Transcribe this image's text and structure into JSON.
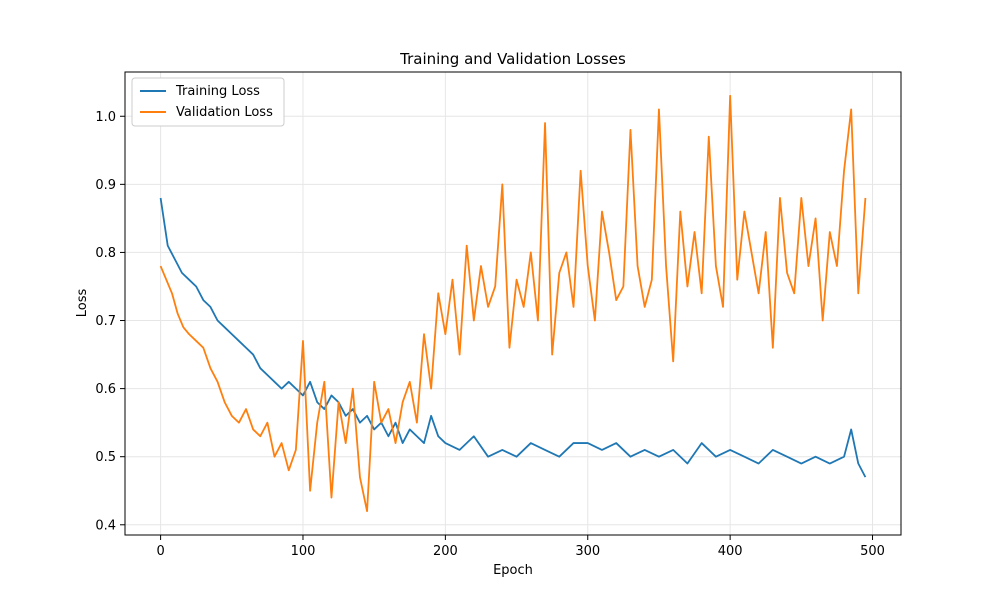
{
  "chart_data": {
    "type": "line",
    "title": "Training and Validation Losses",
    "xlabel": "Epoch",
    "ylabel": "Loss",
    "xlim": [
      -25,
      520
    ],
    "ylim": [
      0.385,
      1.065
    ],
    "xticks": [
      0,
      100,
      200,
      300,
      400,
      500
    ],
    "yticks": [
      0.4,
      0.5,
      0.6,
      0.7,
      0.8,
      0.9,
      1.0
    ],
    "xtick_labels": [
      "0",
      "100",
      "200",
      "300",
      "400",
      "500"
    ],
    "ytick_labels": [
      "0.4",
      "0.5",
      "0.6",
      "0.7",
      "0.8",
      "0.9",
      "1.0"
    ],
    "grid": true,
    "legend_position": "top-left",
    "series": [
      {
        "name": "Training Loss",
        "color": "#1f77b4",
        "x": [
          0,
          5,
          10,
          15,
          20,
          25,
          30,
          35,
          40,
          45,
          50,
          55,
          60,
          65,
          70,
          75,
          80,
          85,
          90,
          95,
          100,
          105,
          110,
          115,
          120,
          125,
          130,
          135,
          140,
          145,
          150,
          155,
          160,
          165,
          170,
          175,
          180,
          185,
          190,
          195,
          200,
          210,
          220,
          230,
          240,
          250,
          260,
          270,
          280,
          290,
          300,
          310,
          320,
          330,
          340,
          350,
          360,
          370,
          380,
          390,
          400,
          410,
          420,
          430,
          440,
          450,
          460,
          470,
          480,
          485,
          490,
          495
        ],
        "y": [
          0.88,
          0.81,
          0.79,
          0.77,
          0.76,
          0.75,
          0.73,
          0.72,
          0.7,
          0.69,
          0.68,
          0.67,
          0.66,
          0.65,
          0.63,
          0.62,
          0.61,
          0.6,
          0.61,
          0.6,
          0.59,
          0.61,
          0.58,
          0.57,
          0.59,
          0.58,
          0.56,
          0.57,
          0.55,
          0.56,
          0.54,
          0.55,
          0.53,
          0.55,
          0.52,
          0.54,
          0.53,
          0.52,
          0.56,
          0.53,
          0.52,
          0.51,
          0.53,
          0.5,
          0.51,
          0.5,
          0.52,
          0.51,
          0.5,
          0.52,
          0.52,
          0.51,
          0.52,
          0.5,
          0.51,
          0.5,
          0.51,
          0.49,
          0.52,
          0.5,
          0.51,
          0.5,
          0.49,
          0.51,
          0.5,
          0.49,
          0.5,
          0.49,
          0.5,
          0.54,
          0.49,
          0.47
        ]
      },
      {
        "name": "Validation Loss",
        "color": "#ff7f0e",
        "x": [
          0,
          4,
          8,
          12,
          16,
          20,
          25,
          30,
          35,
          40,
          45,
          50,
          55,
          60,
          65,
          70,
          75,
          80,
          85,
          90,
          95,
          100,
          105,
          110,
          115,
          120,
          125,
          130,
          135,
          140,
          145,
          150,
          155,
          160,
          165,
          170,
          175,
          180,
          185,
          190,
          195,
          200,
          205,
          210,
          215,
          220,
          225,
          230,
          235,
          240,
          245,
          250,
          255,
          260,
          265,
          270,
          275,
          280,
          285,
          290,
          295,
          300,
          305,
          310,
          315,
          320,
          325,
          330,
          335,
          340,
          345,
          350,
          355,
          360,
          365,
          370,
          375,
          380,
          385,
          390,
          395,
          400,
          405,
          410,
          415,
          420,
          425,
          430,
          435,
          440,
          445,
          450,
          455,
          460,
          465,
          470,
          475,
          480,
          485,
          490,
          495
        ],
        "y": [
          0.78,
          0.76,
          0.74,
          0.71,
          0.69,
          0.68,
          0.67,
          0.66,
          0.63,
          0.61,
          0.58,
          0.56,
          0.55,
          0.57,
          0.54,
          0.53,
          0.55,
          0.5,
          0.52,
          0.48,
          0.51,
          0.67,
          0.45,
          0.55,
          0.61,
          0.44,
          0.58,
          0.52,
          0.6,
          0.47,
          0.42,
          0.61,
          0.55,
          0.57,
          0.52,
          0.58,
          0.61,
          0.55,
          0.68,
          0.6,
          0.74,
          0.68,
          0.76,
          0.65,
          0.81,
          0.7,
          0.78,
          0.72,
          0.75,
          0.9,
          0.66,
          0.76,
          0.72,
          0.8,
          0.7,
          0.99,
          0.65,
          0.77,
          0.8,
          0.72,
          0.92,
          0.78,
          0.7,
          0.86,
          0.8,
          0.73,
          0.75,
          0.98,
          0.78,
          0.72,
          0.76,
          1.01,
          0.78,
          0.64,
          0.86,
          0.75,
          0.83,
          0.74,
          0.97,
          0.78,
          0.72,
          1.03,
          0.76,
          0.86,
          0.8,
          0.74,
          0.83,
          0.66,
          0.88,
          0.77,
          0.74,
          0.88,
          0.78,
          0.85,
          0.7,
          0.83,
          0.78,
          0.92,
          1.01,
          0.74,
          0.88
        ]
      }
    ]
  }
}
